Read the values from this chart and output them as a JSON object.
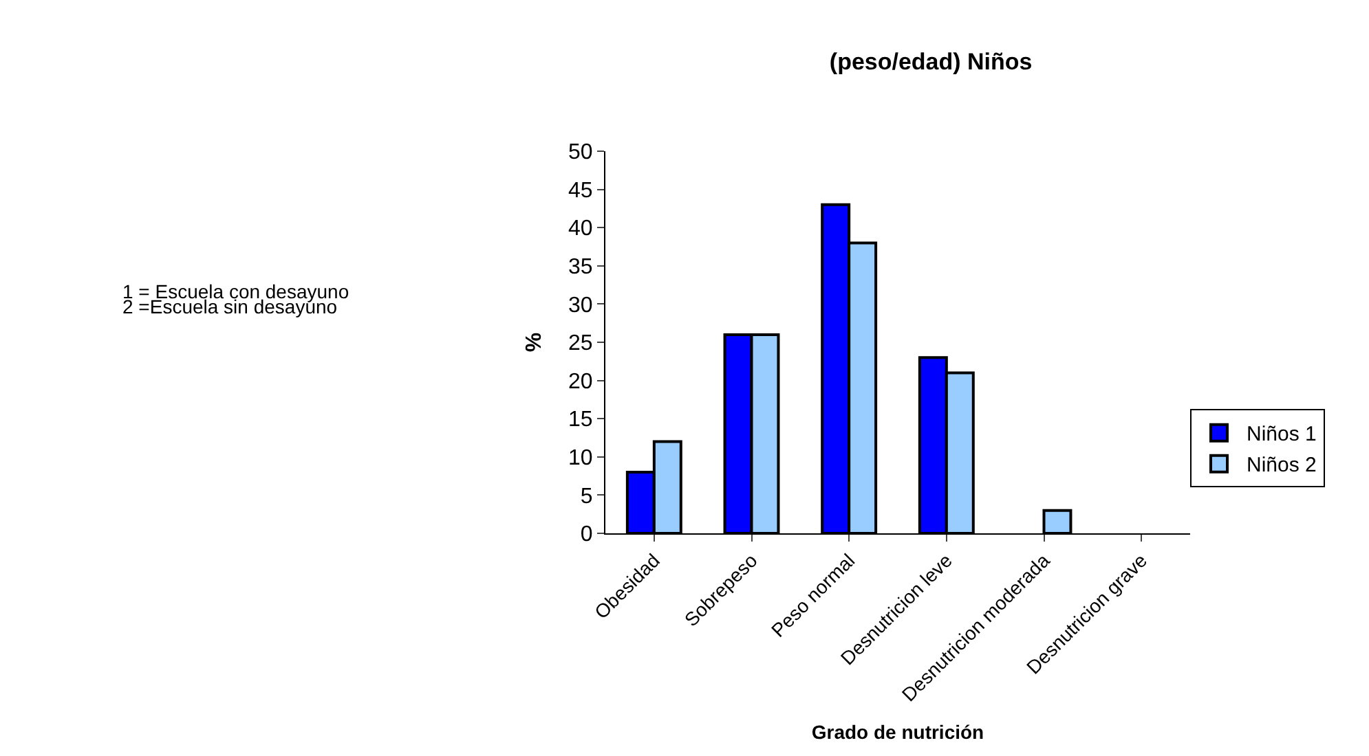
{
  "chart_data": {
    "type": "bar",
    "title": "(peso/edad) Niños",
    "xlabel": "Grado de nutrición",
    "ylabel": "%",
    "categories": [
      "Obesidad",
      "Sobrepeso",
      "Peso normal",
      "Desnutricion leve",
      "Desnutricion moderada",
      "Desnutricion grave"
    ],
    "series": [
      {
        "name": "Niños 1",
        "color": "#0000ff",
        "values": [
          8,
          26,
          43,
          23,
          0,
          0
        ]
      },
      {
        "name": "Niños 2",
        "color": "#99ccff",
        "values": [
          12,
          26,
          38,
          21,
          3,
          0
        ]
      }
    ],
    "ylim": [
      0,
      50
    ],
    "yticks": [
      0,
      5,
      10,
      15,
      20,
      25,
      30,
      35,
      40,
      45,
      50
    ],
    "grid": false,
    "legend": "right",
    "annotations": [
      "1 = Escuela con desayuno",
      "2 =Escuela sin desayuno"
    ]
  }
}
